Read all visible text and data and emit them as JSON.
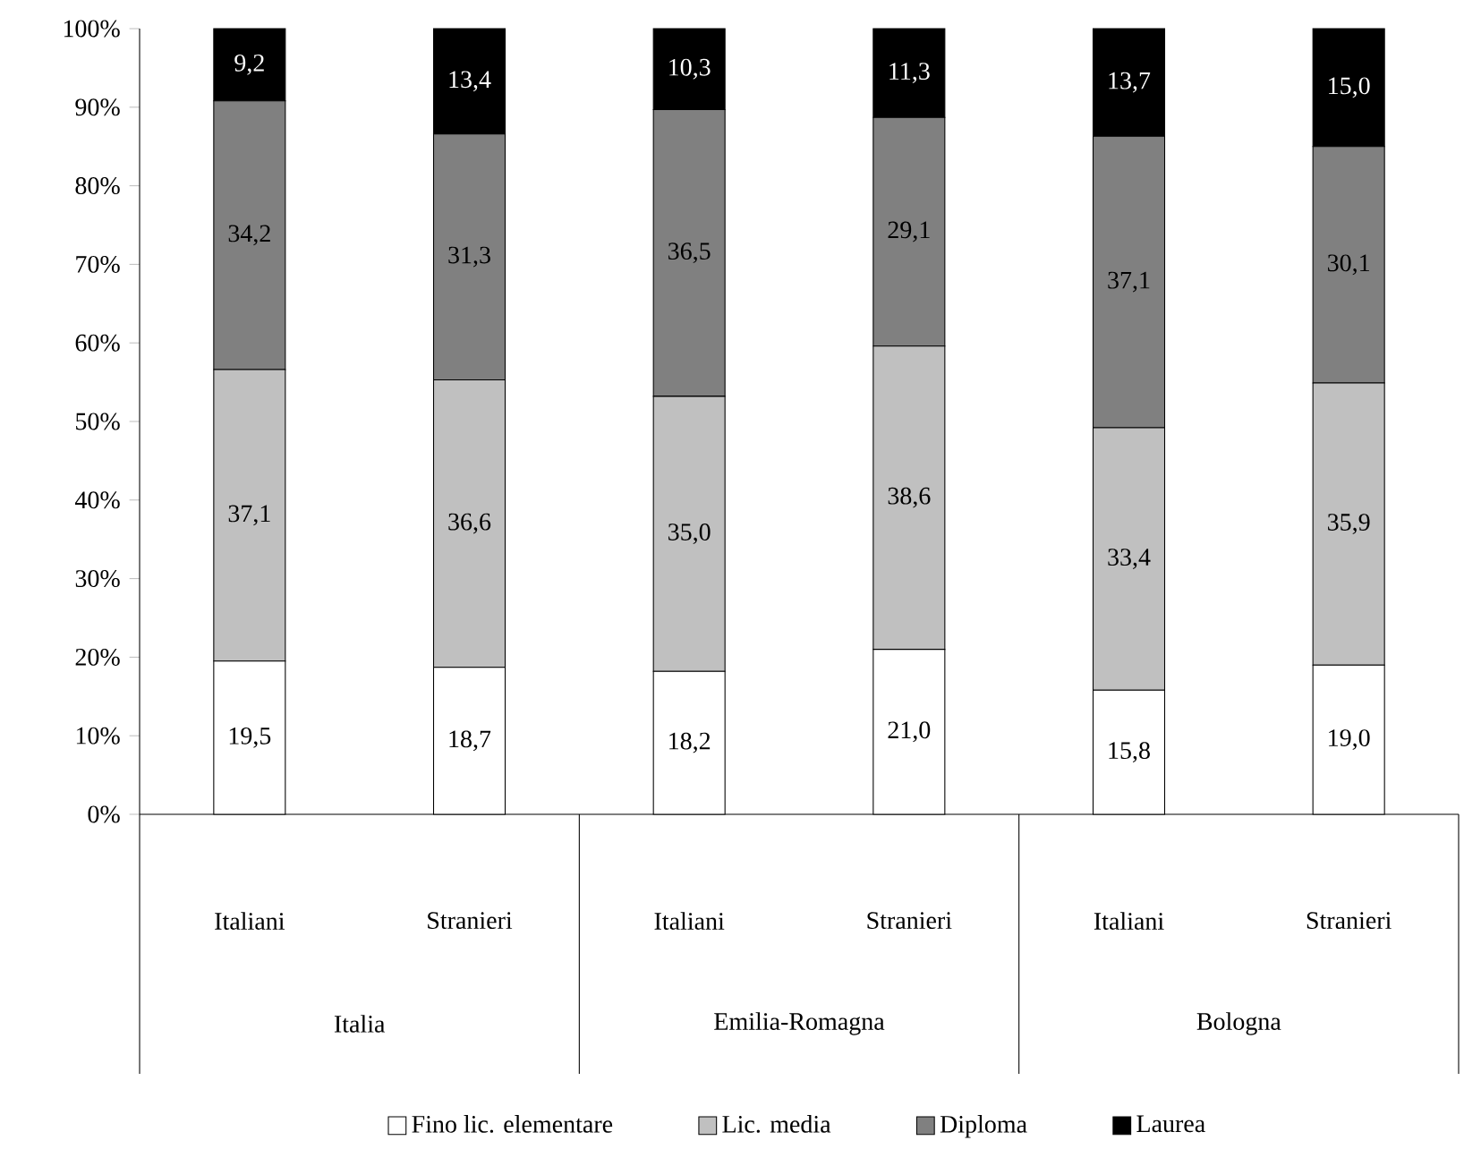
{
  "chart_data": {
    "type": "bar",
    "stacked": true,
    "categories": [
      "Italiani",
      "Stranieri",
      "Italiani",
      "Stranieri",
      "Italiani",
      "Stranieri"
    ],
    "annotations": [
      "Italia",
      "Emilia-Romagna",
      "Bologna"
    ],
    "series": [
      {
        "name": "Fino lic. elementare",
        "color": "#ffffff",
        "values": [
          19.5,
          18.7,
          18.2,
          21.0,
          15.8,
          19.0
        ],
        "value_labels": [
          "19,5",
          "18,7",
          "18,2",
          "21,0",
          "15,8",
          "19,0"
        ]
      },
      {
        "name": "Lic. media",
        "color": "#c0c0c0",
        "values": [
          37.1,
          36.6,
          35.0,
          38.6,
          33.4,
          35.9
        ],
        "value_labels": [
          "37,1",
          "36,6",
          "35,0",
          "38,6",
          "33,4",
          "35,9"
        ]
      },
      {
        "name": "Diploma",
        "color": "#808080",
        "values": [
          34.2,
          31.3,
          36.5,
          29.1,
          37.1,
          30.1
        ],
        "value_labels": [
          "34,2",
          "31,3",
          "36,5",
          "29,1",
          "37,1",
          "30,1"
        ]
      },
      {
        "name": "Laurea",
        "color": "#000000",
        "values": [
          9.2,
          13.4,
          10.3,
          11.3,
          13.7,
          15.0
        ],
        "value_labels": [
          "9,2",
          "13,4",
          "10,3",
          "11,3",
          "13,7",
          "15,0"
        ]
      }
    ],
    "ylim": [
      0,
      100
    ],
    "yticks": [
      {
        "value": 0,
        "label": "0%"
      },
      {
        "value": 10,
        "label": "10%"
      },
      {
        "value": 20,
        "label": "20%"
      },
      {
        "value": 30,
        "label": "30%"
      },
      {
        "value": 40,
        "label": "40%"
      },
      {
        "value": 50,
        "label": "50%"
      },
      {
        "value": 60,
        "label": "60%"
      },
      {
        "value": 70,
        "label": "70%"
      },
      {
        "value": 80,
        "label": "80%"
      },
      {
        "value": 90,
        "label": "90%"
      },
      {
        "value": 100,
        "label": "100%"
      }
    ],
    "grid": false,
    "legend": "bottom"
  }
}
